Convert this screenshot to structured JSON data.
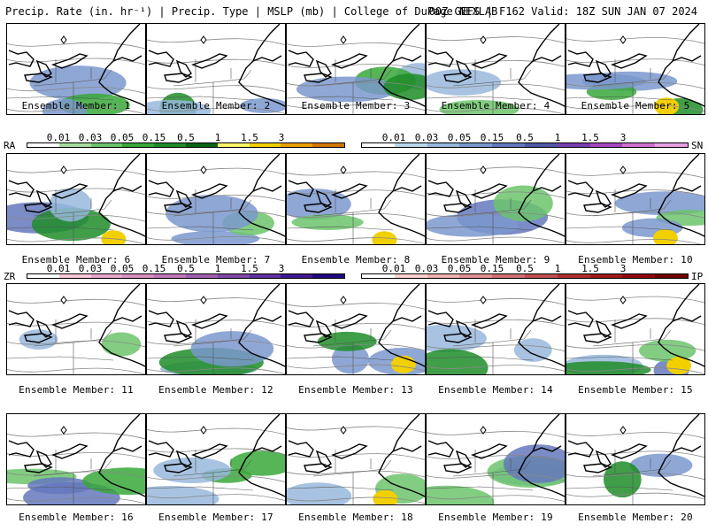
{
  "header": {
    "left": "Precip. Rate (in. hr⁻¹) | Precip. Type | MSLP (mb) | College of DuPage NEXLAB",
    "right": "00Z GEFS | F162 Valid: 18Z SUN JAN 07 2024"
  },
  "members": [
    {
      "label": "Ensemble Member: 1"
    },
    {
      "label": "Ensemble Member: 2"
    },
    {
      "label": "Ensemble Member: 3"
    },
    {
      "label": "Ensemble Member: 4"
    },
    {
      "label": "Ensemble Member: 5"
    },
    {
      "label": "Ensemble Member: 6"
    },
    {
      "label": "Ensemble Member: 7"
    },
    {
      "label": "Ensemble Member: 8"
    },
    {
      "label": "Ensemble Member: 9"
    },
    {
      "label": "Ensemble Member: 10"
    },
    {
      "label": "Ensemble Member: 11"
    },
    {
      "label": "Ensemble Member: 12"
    },
    {
      "label": "Ensemble Member: 13"
    },
    {
      "label": "Ensemble Member: 14"
    },
    {
      "label": "Ensemble Member: 15"
    },
    {
      "label": "Ensemble Member: 16"
    },
    {
      "label": "Ensemble Member: 17"
    },
    {
      "label": "Ensemble Member: 18"
    },
    {
      "label": "Ensemble Member: 19"
    },
    {
      "label": "Ensemble Member: 20"
    }
  ],
  "legends": {
    "rain": {
      "type": "RA",
      "ticks": [
        "0.01",
        "0.03",
        "0.05",
        "0.15",
        "0.5",
        "1",
        "1.5",
        "3"
      ],
      "colors": [
        "#ffffff",
        "#a8dca0",
        "#6cc46c",
        "#38a838",
        "#1e8c28",
        "#0a6414",
        "#fff46a",
        "#f2d000",
        "#e8a000",
        "#d07800"
      ]
    },
    "snow": {
      "type": "SN",
      "ticks": [
        "0.01",
        "0.03",
        "0.05",
        "0.15",
        "0.5",
        "1",
        "1.5",
        "3"
      ],
      "colors": [
        "#ffffff",
        "#bcd8ec",
        "#98b8dc",
        "#7a98cc",
        "#6478bc",
        "#5058a8",
        "#7840b0",
        "#a848c0",
        "#d070d0",
        "#e8a0e4"
      ]
    },
    "zr": {
      "type": "ZR",
      "ticks": [
        "0.01",
        "0.03",
        "0.05",
        "0.15",
        "0.5",
        "1",
        "1.5",
        "3"
      ],
      "colors": [
        "#ffffff",
        "#f8c8d8",
        "#e8a8c8",
        "#d890c0",
        "#c078b8",
        "#a060b0",
        "#8048a8",
        "#6030a0",
        "#401890",
        "#200880"
      ]
    },
    "ip": {
      "type": "IP",
      "ticks": [
        "0.01",
        "0.03",
        "0.05",
        "0.15",
        "0.5",
        "1",
        "1.5",
        "3"
      ],
      "colors": [
        "#ffffff",
        "#f8d0d0",
        "#f0b0b0",
        "#e09090",
        "#d07070",
        "#c05050",
        "#b03030",
        "#a01818",
        "#900808",
        "#700000"
      ]
    }
  }
}
